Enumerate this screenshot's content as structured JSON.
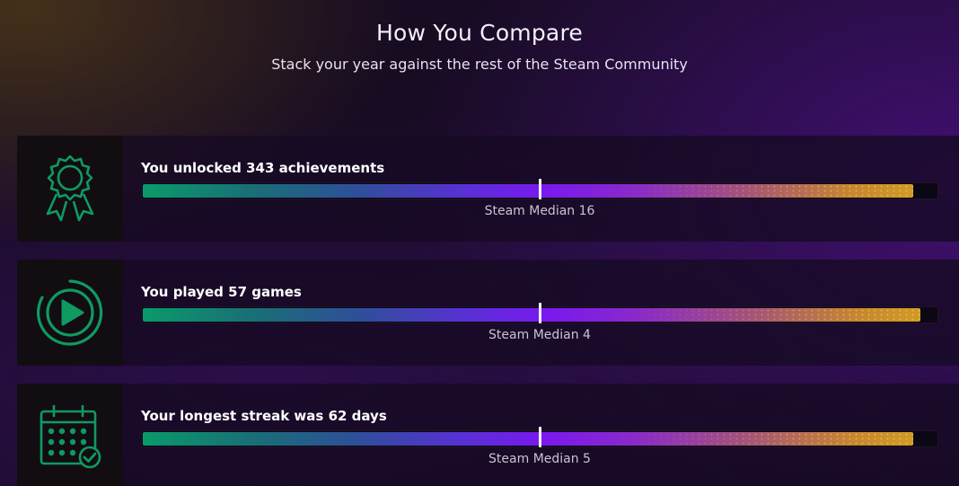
{
  "header": {
    "title": "How You Compare",
    "subtitle": "Stack your year against the rest of the Steam Community"
  },
  "theme": {
    "icon_color": "#0f9a62",
    "gradient_colors": [
      "#0a9a6a",
      "#2f4e9a",
      "#7a18f0",
      "#a4527a",
      "#d19a24"
    ]
  },
  "stats": [
    {
      "icon": "award-ribbon-icon",
      "label": "You unlocked 343 achievements",
      "median_label": "Steam Median 16",
      "you_fraction": 0.968,
      "median_fraction": 0.5
    },
    {
      "icon": "play-circle-icon",
      "label": "You played 57 games",
      "median_label": "Steam Median 4",
      "you_fraction": 0.977,
      "median_fraction": 0.5
    },
    {
      "icon": "calendar-check-icon",
      "label": "Your longest streak was 62 days",
      "median_label": "Steam Median 5",
      "you_fraction": 0.968,
      "median_fraction": 0.5
    }
  ]
}
